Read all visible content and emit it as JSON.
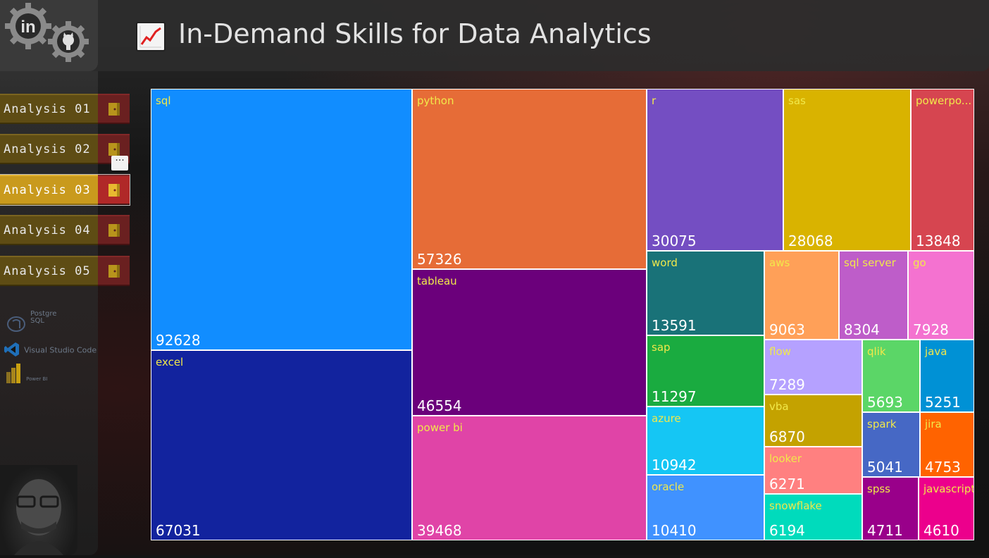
{
  "header": {
    "title": "In-Demand Skills for Data Analytics",
    "title_icon": "chart-increasing-icon",
    "logos": [
      "linkedin-gear-icon",
      "github-gear-icon"
    ]
  },
  "sidebar": {
    "nav": [
      {
        "label": "Analysis 01",
        "active": false
      },
      {
        "label": "Analysis 02",
        "active": false
      },
      {
        "label": "Analysis 03",
        "active": true
      },
      {
        "label": "Analysis 04",
        "active": false
      },
      {
        "label": "Analysis 05",
        "active": false
      }
    ],
    "more_label": "···",
    "tools": [
      {
        "label": "Postgre SQL",
        "icon": "postgresql-icon"
      },
      {
        "label": "Visual Studio Code",
        "icon": "vscode-icon"
      },
      {
        "label": "Power BI",
        "icon": "powerbi-icon"
      }
    ]
  },
  "colors": {
    "nav_bg": "#5e4c14",
    "nav_active_bg": "#c99a1d",
    "door_bg": "#6a2020",
    "label_color": "#f1e84a"
  },
  "chart_data": {
    "type": "treemap",
    "nodes": [
      {
        "name": "sql",
        "value": 92628,
        "color": "#118dff"
      },
      {
        "name": "excel",
        "value": 67031,
        "color": "#12239e"
      },
      {
        "name": "python",
        "value": 57326,
        "color": "#e66c37"
      },
      {
        "name": "tableau",
        "value": 46554,
        "color": "#6b007b"
      },
      {
        "name": "power bi",
        "value": 39468,
        "color": "#e044a7"
      },
      {
        "name": "r",
        "value": 30075,
        "color": "#744ec2"
      },
      {
        "name": "sas",
        "value": 28068,
        "color": "#d9b300"
      },
      {
        "name": "powerpo...",
        "value": 13848,
        "color": "#d64550"
      },
      {
        "name": "word",
        "value": 13591,
        "color": "#197278"
      },
      {
        "name": "sap",
        "value": 11297,
        "color": "#1aab40"
      },
      {
        "name": "azure",
        "value": 10942,
        "color": "#15c6f4"
      },
      {
        "name": "oracle",
        "value": 10410,
        "color": "#4092ff"
      },
      {
        "name": "aws",
        "value": 9063,
        "color": "#ffa058"
      },
      {
        "name": "sql server",
        "value": 8304,
        "color": "#be5dc9"
      },
      {
        "name": "go",
        "value": 7928,
        "color": "#f472d0"
      },
      {
        "name": "flow",
        "value": 7289,
        "color": "#b5a1ff"
      },
      {
        "name": "vba",
        "value": 6870,
        "color": "#c4a200"
      },
      {
        "name": "looker",
        "value": 6271,
        "color": "#ff8080"
      },
      {
        "name": "snowflake",
        "value": 6194,
        "color": "#00dbbc"
      },
      {
        "name": "qlik",
        "value": 5693,
        "color": "#5bd667"
      },
      {
        "name": "java",
        "value": 5251,
        "color": "#0091d5"
      },
      {
        "name": "spark",
        "value": 5041,
        "color": "#4668c5"
      },
      {
        "name": "jira",
        "value": 4753,
        "color": "#ff6300"
      },
      {
        "name": "spss",
        "value": 4711,
        "color": "#99008a"
      },
      {
        "name": "javascript",
        "value": 4610,
        "color": "#ec008c"
      }
    ]
  }
}
